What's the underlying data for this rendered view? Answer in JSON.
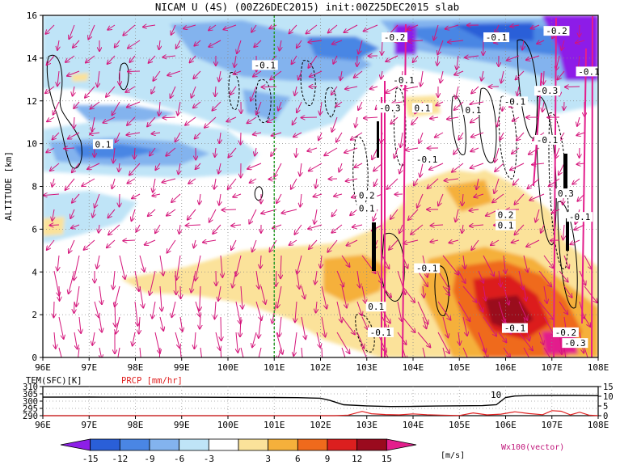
{
  "title": "NICAM U (4S) (00Z26DEC2015) init:00Z25DEC2015 slab",
  "chart_data": [
    {
      "type": "heatmap",
      "title": "NICAM U (4S) (00Z26DEC2015) init:00Z25DEC2015 slab",
      "ylabel": "ALTITUDE [km]",
      "xlabel": "",
      "x_ticks": [
        "96E",
        "97E",
        "98E",
        "99E",
        "100E",
        "101E",
        "102E",
        "103E",
        "104E",
        "105E",
        "106E",
        "107E",
        "108E"
      ],
      "y_ticks": [
        "0",
        "2",
        "4",
        "6",
        "8",
        "10",
        "12",
        "14",
        "16"
      ],
      "xlim": [
        96,
        108
      ],
      "ylim": [
        0,
        16
      ],
      "grid": true,
      "marker_line_x": 101,
      "marker_line_color": "#1f9a1f",
      "contour_labels": [
        {
          "text": "0.1",
          "x": 97.3,
          "y": 9.9
        },
        {
          "text": "-0.1",
          "x": 100.8,
          "y": 13.6
        },
        {
          "text": "-0.2",
          "x": 103.6,
          "y": 14.9
        },
        {
          "text": "-0.1",
          "x": 103.8,
          "y": 12.9
        },
        {
          "text": "-0.3",
          "x": 103.5,
          "y": 11.6
        },
        {
          "text": "0.1",
          "x": 104.2,
          "y": 11.6
        },
        {
          "text": "-0.1",
          "x": 104.3,
          "y": 9.2
        },
        {
          "text": "0.1",
          "x": 105.3,
          "y": 11.5
        },
        {
          "text": "-0.1",
          "x": 106.2,
          "y": 11.9
        },
        {
          "text": "-0.1",
          "x": 105.8,
          "y": 14.9
        },
        {
          "text": "-0.1",
          "x": 106.9,
          "y": 10.1
        },
        {
          "text": "-0.2",
          "x": 107.1,
          "y": 15.2
        },
        {
          "text": "-0.1",
          "x": 107.8,
          "y": 13.3
        },
        {
          "text": "-0.3",
          "x": 106.9,
          "y": 12.4
        },
        {
          "text": "0.2",
          "x": 103.0,
          "y": 7.5
        },
        {
          "text": "0.1",
          "x": 103.0,
          "y": 6.9
        },
        {
          "text": "0.2",
          "x": 106.0,
          "y": 6.6
        },
        {
          "text": "0.1",
          "x": 106.0,
          "y": 6.1
        },
        {
          "text": "-0.1",
          "x": 104.3,
          "y": 4.1
        },
        {
          "text": "0.1",
          "x": 103.2,
          "y": 2.3
        },
        {
          "text": "-0.1",
          "x": 103.3,
          "y": 1.1
        },
        {
          "text": "-0.1",
          "x": 106.2,
          "y": 1.3
        },
        {
          "text": "-0.2",
          "x": 107.3,
          "y": 1.1
        },
        {
          "text": "-0.3",
          "x": 107.5,
          "y": 0.6
        },
        {
          "text": "0.3",
          "x": 107.3,
          "y": 7.6
        },
        {
          "text": "-0.1",
          "x": 107.6,
          "y": 6.5
        }
      ]
    },
    {
      "type": "line",
      "series": [
        {
          "name": "TEM(SFC)[K]",
          "color": "#000000",
          "x": [
            96,
            97,
            98,
            99,
            100,
            101,
            101.5,
            102,
            102.2,
            102.5,
            103,
            103.5,
            104,
            104.5,
            105,
            105.5,
            105.8,
            106,
            106.2,
            106.5,
            107,
            107.5,
            108
          ],
          "y": [
            302.7,
            302.8,
            302.7,
            302.7,
            302.6,
            302.5,
            302.4,
            302.0,
            300.5,
            297.5,
            296.7,
            296.3,
            296.4,
            296.6,
            296.8,
            296.9,
            297.5,
            302.5,
            303.5,
            303.8,
            303.9,
            303.9,
            303.7
          ]
        },
        {
          "name": "PRCP [mm/hr]",
          "color": "#e02020",
          "x": [
            96,
            102,
            102.3,
            102.6,
            102.9,
            103.1,
            103.4,
            103.7,
            104,
            104.3,
            104.6,
            105,
            105.3,
            105.6,
            105.9,
            106.2,
            106.5,
            106.8,
            107,
            107.2,
            107.4,
            107.6,
            107.8,
            108
          ],
          "y": [
            0,
            0,
            0,
            0.3,
            2.2,
            1.0,
            0.6,
            0.4,
            0.9,
            0.5,
            0.3,
            0.1,
            1.4,
            0.4,
            0.8,
            2.0,
            1.1,
            0.5,
            2.6,
            2.3,
            0.4,
            1.8,
            0.3,
            0
          ]
        }
      ],
      "left_axis_ticks": [
        "310",
        "305",
        "300",
        "295",
        "290"
      ],
      "right_axis_ticks": [
        "15",
        "10",
        "5",
        "0"
      ],
      "ylim_left": [
        290,
        310
      ],
      "ylim_right": [
        0,
        15
      ],
      "x_ticks": [
        "96E",
        "97E",
        "98E",
        "99E",
        "100E",
        "101E",
        "102E",
        "103E",
        "104E",
        "105E",
        "106E",
        "107E",
        "108E"
      ],
      "annotation": "10"
    }
  ],
  "colorbar": {
    "ticks": [
      "-15",
      "-12",
      "-9",
      "-6",
      "-3",
      "3",
      "6",
      "9",
      "12",
      "15"
    ],
    "colors": [
      "#8d1fe8",
      "#2a5fd8",
      "#4a86e4",
      "#83b3ee",
      "#bfe4f7",
      "#ffffff",
      "#fbe29a",
      "#f5b03b",
      "#ef6a1c",
      "#dc1f1f",
      "#9a0a1e",
      "#e31e8c"
    ],
    "unit": "[m/s]",
    "vector_label": "Wx100(vector)"
  }
}
